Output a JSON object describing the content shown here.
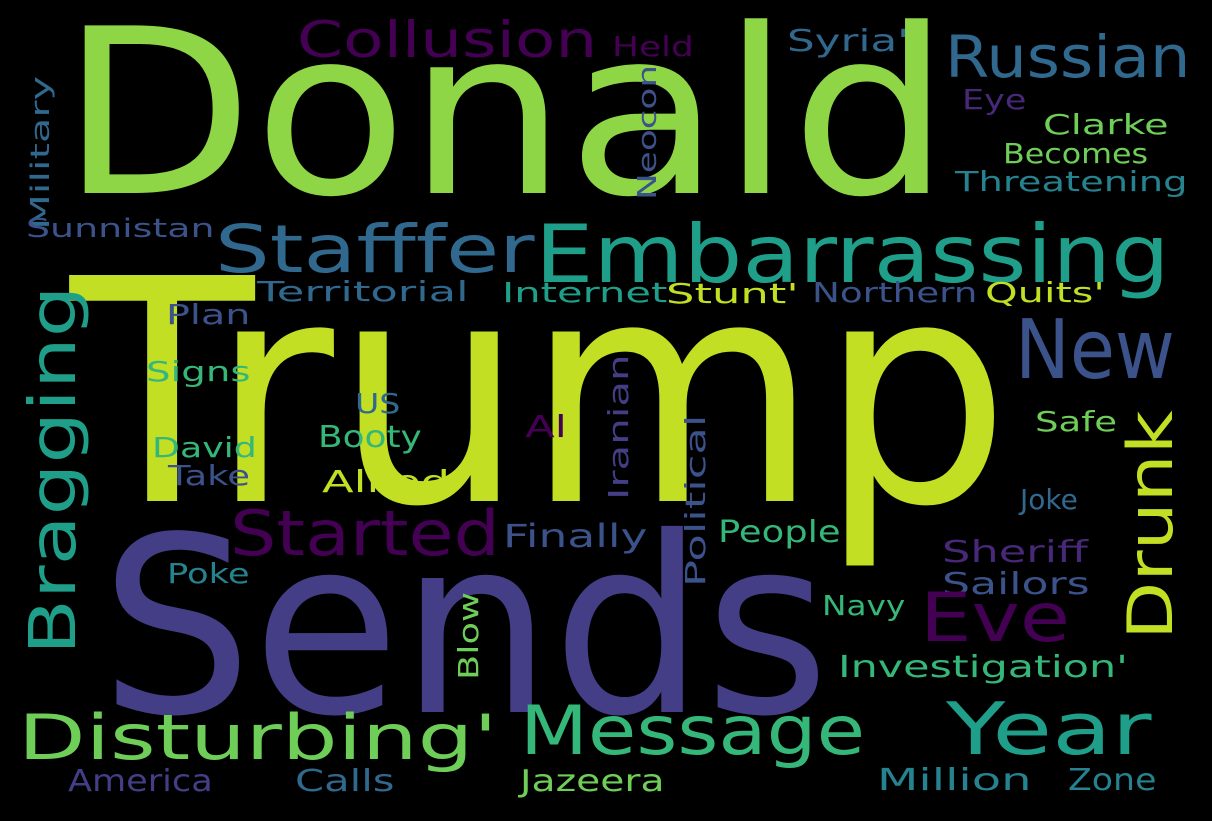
{
  "background": "#000000",
  "palette": {
    "lime": "#8ed646",
    "yellow": "#c2df23",
    "indigo": "#433e85",
    "teal": "#21908d",
    "sea": "#1f9e89",
    "green": "#35b779",
    "blue": "#31688e",
    "slate": "#3b528b",
    "purple": "#482878",
    "violet": "#440154",
    "ltgreen": "#6ece58",
    "dkteal": "#26828e"
  },
  "words": [
    {
      "text": "Donald",
      "color": "lime"
    },
    {
      "text": "Trump",
      "color": "yellow"
    },
    {
      "text": "Sends",
      "color": "indigo"
    },
    {
      "text": "Embarrassing",
      "color": "sea"
    },
    {
      "text": "Stafffer",
      "color": "blue"
    },
    {
      "text": "Russian",
      "color": "blue"
    },
    {
      "text": "Collusion",
      "color": "violet"
    },
    {
      "text": "Held",
      "color": "violet"
    },
    {
      "text": "Syria'",
      "color": "blue"
    },
    {
      "text": "Eye",
      "color": "purple"
    },
    {
      "text": "Clarke",
      "color": "ltgreen"
    },
    {
      "text": "Becomes",
      "color": "ltgreen"
    },
    {
      "text": "Threatening",
      "color": "dkteal"
    },
    {
      "text": "Military",
      "color": "blue"
    },
    {
      "text": "Neocon",
      "color": "slate"
    },
    {
      "text": "Sunnistan",
      "color": "slate"
    },
    {
      "text": "Territorial",
      "color": "blue"
    },
    {
      "text": "Internet",
      "color": "sea"
    },
    {
      "text": "Stunt'",
      "color": "yellow"
    },
    {
      "text": "Northern",
      "color": "slate"
    },
    {
      "text": "Quits'",
      "color": "yellow"
    },
    {
      "text": "New",
      "color": "slate"
    },
    {
      "text": "Bragging",
      "color": "sea"
    },
    {
      "text": "Plan",
      "color": "slate"
    },
    {
      "text": "Signs",
      "color": "green"
    },
    {
      "text": "US",
      "color": "blue"
    },
    {
      "text": "Booty",
      "color": "green"
    },
    {
      "text": "David",
      "color": "green"
    },
    {
      "text": "Take",
      "color": "slate"
    },
    {
      "text": "Allied",
      "color": "yellow"
    },
    {
      "text": "Al",
      "color": "violet"
    },
    {
      "text": "Iranian",
      "color": "indigo"
    },
    {
      "text": "Political",
      "color": "slate"
    },
    {
      "text": "Drunk",
      "color": "yellow"
    },
    {
      "text": "Safe",
      "color": "ltgreen"
    },
    {
      "text": "Joke",
      "color": "blue"
    },
    {
      "text": "Started",
      "color": "violet"
    },
    {
      "text": "Finally",
      "color": "slate"
    },
    {
      "text": "People",
      "color": "green"
    },
    {
      "text": "Sheriff",
      "color": "purple"
    },
    {
      "text": "Sailors",
      "color": "slate"
    },
    {
      "text": "Eve",
      "color": "violet"
    },
    {
      "text": "Poke",
      "color": "dkteal"
    },
    {
      "text": "Navy",
      "color": "green"
    },
    {
      "text": "Blow",
      "color": "ltgreen"
    },
    {
      "text": "Investigation'",
      "color": "green"
    },
    {
      "text": "Disturbing'",
      "color": "ltgreen"
    },
    {
      "text": "Message",
      "color": "green"
    },
    {
      "text": "Year",
      "color": "sea"
    },
    {
      "text": "America",
      "color": "indigo"
    },
    {
      "text": "Calls",
      "color": "blue"
    },
    {
      "text": "Jazeera",
      "color": "ltgreen"
    },
    {
      "text": "Million",
      "color": "dkteal"
    },
    {
      "text": "Zone",
      "color": "dkteal"
    }
  ]
}
